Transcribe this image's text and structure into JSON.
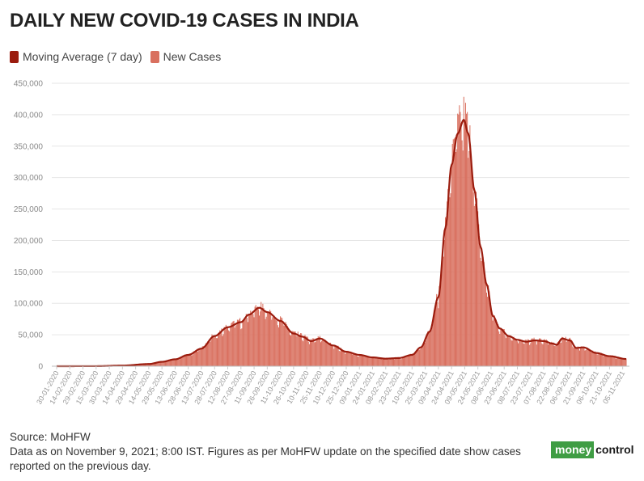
{
  "title": "DAILY NEW COVID-19 CASES IN INDIA",
  "legend": {
    "moving_average": "Moving Average (7 day)",
    "new_cases": "New Cases"
  },
  "colors": {
    "bar": "#d9705f",
    "line": "#9b1c0e",
    "grid": "#e6e6e6"
  },
  "footer": {
    "source": "Source: MoHFW",
    "note_line1": "Data as on November 9, 2021; 8:00 IST. Figures as per MoHFW update on the specified date show cases",
    "note_line2": "reported on the previous day."
  },
  "logo": {
    "money": "money",
    "control": "control"
  },
  "chart_data": {
    "type": "bar",
    "x_start": "2020-01-30",
    "x_end": "2021-11-09",
    "ylim": [
      0,
      450000
    ],
    "y_ticks": [
      0,
      50000,
      100000,
      150000,
      200000,
      250000,
      300000,
      350000,
      400000,
      450000
    ],
    "y_tick_labels": [
      "0",
      "50,000",
      "100,000",
      "150,000",
      "200,000",
      "250,000",
      "300,000",
      "350,000",
      "400,000",
      "450,000"
    ],
    "x_tick_labels": [
      "30-01-2020",
      "14-02-2020",
      "29-02-2020",
      "15-03-2020",
      "30-03-2020",
      "14-04-2020",
      "29-04-2020",
      "14-05-2020",
      "29-05-2020",
      "13-06-2020",
      "28-06-2020",
      "13-07-2020",
      "28-07-2020",
      "12-08-2020",
      "27-08-2020",
      "11-09-2020",
      "26-09-2020",
      "11-10-2020",
      "26-10-2020",
      "10-11-2020",
      "25-11-2020",
      "10-12-2020",
      "25-12-2020",
      "09-01-2021",
      "24-01-2021",
      "08-02-2021",
      "23-02-2021",
      "10-03-2021",
      "25-03-2021",
      "09-04-2021",
      "24-04-2021",
      "09-05-2021",
      "24-05-2021",
      "08-06-2021",
      "23-06-2021",
      "08-07-2021",
      "23-07-2021",
      "07-08-2021",
      "22-08-2021",
      "06-09-2021",
      "21-09-2021",
      "06-10-2021",
      "21-10-2021",
      "05-11-2021"
    ],
    "moving_average_key_points": [
      [
        "2020-01-30",
        0
      ],
      [
        "2020-03-15",
        100
      ],
      [
        "2020-04-14",
        1000
      ],
      [
        "2020-05-14",
        3500
      ],
      [
        "2020-05-29",
        7000
      ],
      [
        "2020-06-13",
        11000
      ],
      [
        "2020-06-28",
        18000
      ],
      [
        "2020-07-13",
        28000
      ],
      [
        "2020-07-28",
        48000
      ],
      [
        "2020-08-12",
        62000
      ],
      [
        "2020-08-27",
        70000
      ],
      [
        "2020-09-05",
        82000
      ],
      [
        "2020-09-17",
        93000
      ],
      [
        "2020-09-26",
        86000
      ],
      [
        "2020-10-11",
        72000
      ],
      [
        "2020-10-26",
        52000
      ],
      [
        "2020-11-05",
        47000
      ],
      [
        "2020-11-15",
        40000
      ],
      [
        "2020-11-25",
        44000
      ],
      [
        "2020-12-10",
        33000
      ],
      [
        "2020-12-25",
        23000
      ],
      [
        "2021-01-09",
        18000
      ],
      [
        "2021-01-24",
        14000
      ],
      [
        "2021-02-08",
        12000
      ],
      [
        "2021-02-23",
        13000
      ],
      [
        "2021-03-10",
        18000
      ],
      [
        "2021-03-20",
        30000
      ],
      [
        "2021-03-30",
        55000
      ],
      [
        "2021-04-09",
        110000
      ],
      [
        "2021-04-17",
        220000
      ],
      [
        "2021-04-24",
        320000
      ],
      [
        "2021-05-01",
        370000
      ],
      [
        "2021-05-08",
        392000
      ],
      [
        "2021-05-13",
        370000
      ],
      [
        "2021-05-20",
        280000
      ],
      [
        "2021-05-27",
        190000
      ],
      [
        "2021-06-03",
        130000
      ],
      [
        "2021-06-10",
        80000
      ],
      [
        "2021-06-18",
        60000
      ],
      [
        "2021-06-28",
        48000
      ],
      [
        "2021-07-08",
        42000
      ],
      [
        "2021-07-18",
        39000
      ],
      [
        "2021-07-28",
        41000
      ],
      [
        "2021-08-07",
        40000
      ],
      [
        "2021-08-17",
        36000
      ],
      [
        "2021-08-22",
        34000
      ],
      [
        "2021-08-28",
        44000
      ],
      [
        "2021-09-06",
        41000
      ],
      [
        "2021-09-13",
        29000
      ],
      [
        "2021-09-21",
        30000
      ],
      [
        "2021-10-06",
        21000
      ],
      [
        "2021-10-21",
        16000
      ],
      [
        "2021-11-09",
        11500
      ]
    ]
  }
}
